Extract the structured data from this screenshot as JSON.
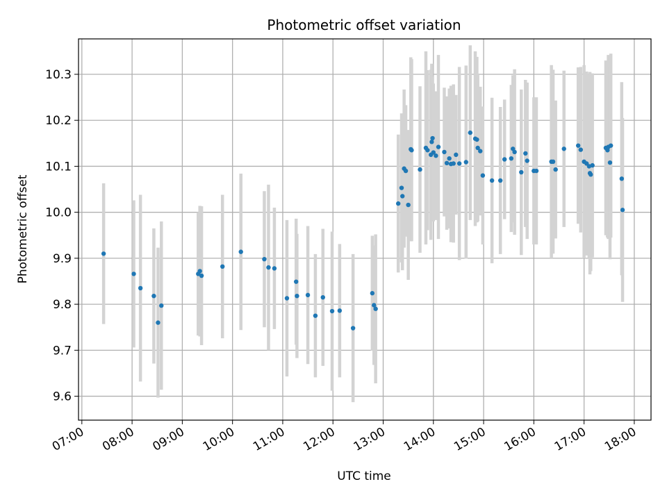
{
  "chart_data": {
    "type": "scatter",
    "title": "Photometric offset variation",
    "xlabel": "UTC time",
    "ylabel": "Photometric offset",
    "x_format": "HH:MM",
    "xlim": [
      "06:56",
      "18:20"
    ],
    "ylim": [
      9.548,
      10.377
    ],
    "xticks": [
      "07:00",
      "08:00",
      "09:00",
      "10:00",
      "11:00",
      "12:00",
      "13:00",
      "14:00",
      "15:00",
      "15:00",
      "16:00",
      "17:00",
      "18:00"
    ],
    "yticks": [
      9.6,
      9.7,
      9.8,
      9.9,
      10.0,
      10.1,
      10.2,
      10.3
    ],
    "grid": true,
    "marker_color": "#1f77b4",
    "errorbar_color": "#d3d3d3",
    "series": [
      {
        "x": [
          "07:26",
          "08:02",
          "08:10",
          "08:26",
          "08:31",
          "08:35",
          "09:19",
          "09:21",
          "09:23",
          "09:48",
          "10:10",
          "10:38",
          "10:43",
          "10:50",
          "11:05",
          "11:16",
          "11:17",
          "11:30",
          "11:39",
          "11:48",
          "11:59",
          "12:08",
          "12:24",
          "12:47",
          "12:49",
          "12:51",
          "13:18",
          "13:22",
          "13:23",
          "13:25",
          "13:27",
          "13:30",
          "13:33",
          "13:34",
          "13:44",
          "13:51",
          "13:53",
          "13:57",
          "13:58",
          "13:59",
          "14:00",
          "14:03",
          "14:06",
          "14:13",
          "14:16",
          "14:19",
          "14:21",
          "14:24",
          "14:27",
          "14:31",
          "14:39",
          "14:44",
          "14:50",
          "14:52",
          "14:53",
          "14:56",
          "14:59",
          "15:10",
          "15:20",
          "15:25",
          "15:33",
          "15:35",
          "15:37",
          "15:45",
          "15:50",
          "15:52",
          "16:00",
          "16:03",
          "16:21",
          "16:23",
          "16:26",
          "16:36",
          "16:53",
          "16:56",
          "17:00",
          "17:03",
          "17:06",
          "17:07",
          "17:08",
          "17:10",
          "17:26",
          "17:28",
          "17:29",
          "17:31",
          "17:32",
          "17:45",
          "17:46"
        ],
        "y": [
          9.91,
          9.866,
          9.835,
          9.818,
          9.76,
          9.797,
          9.866,
          9.872,
          9.862,
          9.882,
          9.914,
          9.898,
          9.88,
          9.878,
          9.813,
          9.849,
          9.818,
          9.82,
          9.775,
          9.815,
          9.785,
          9.786,
          9.748,
          9.824,
          9.798,
          9.79,
          10.019,
          10.053,
          10.035,
          10.095,
          10.09,
          10.016,
          10.137,
          10.135,
          10.093,
          10.14,
          10.135,
          10.125,
          10.153,
          10.161,
          10.13,
          10.123,
          10.142,
          10.131,
          10.107,
          10.117,
          10.105,
          10.106,
          10.125,
          10.106,
          10.109,
          10.173,
          10.16,
          10.158,
          10.14,
          10.133,
          10.08,
          10.069,
          10.069,
          10.115,
          10.117,
          10.138,
          10.131,
          10.087,
          10.128,
          10.112,
          10.09,
          10.09,
          10.11,
          10.11,
          10.093,
          10.138,
          10.145,
          10.136,
          10.11,
          10.106,
          10.1,
          10.085,
          10.082,
          10.102,
          10.14,
          10.135,
          10.142,
          10.108,
          10.145,
          10.073,
          10.005
        ],
        "err": [
          0.153,
          0.16,
          0.203,
          0.147,
          0.163,
          0.183,
          0.134,
          0.142,
          0.151,
          0.156,
          0.17,
          0.148,
          0.18,
          0.132,
          0.17,
          0.137,
          0.135,
          0.15,
          0.134,
          0.149,
          0.173,
          0.145,
          0.161,
          0.125,
          0.13,
          0.162,
          0.15,
          0.162,
          0.161,
          0.172,
          0.143,
          0.163,
          0.2,
          0.198,
          0.181,
          0.21,
          0.174,
          0.185,
          0.17,
          0.134,
          0.15,
          0.14,
          0.2,
          0.14,
          0.145,
          0.152,
          0.17,
          0.172,
          0.13,
          0.21,
          0.21,
          0.19,
          0.19,
          0.18,
          0.16,
          0.14,
          0.15,
          0.18,
          0.16,
          0.13,
          0.16,
          0.16,
          0.18,
          0.18,
          0.16,
          0.17,
          0.16,
          0.16,
          0.21,
          0.2,
          0.15,
          0.17,
          0.17,
          0.18,
          0.21,
          0.2,
          0.2,
          0.22,
          0.21,
          0.2,
          0.19,
          0.19,
          0.2,
          0.21,
          0.2,
          0.21,
          0.2
        ]
      }
    ]
  }
}
